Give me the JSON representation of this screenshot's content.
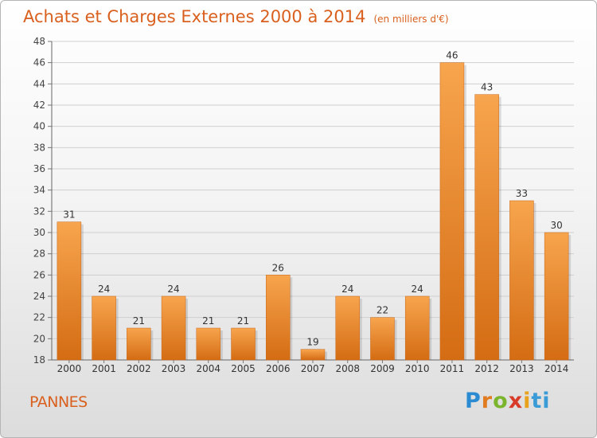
{
  "header": {
    "title": "Achats et Charges Externes 2000 à 2014",
    "unit": "(en milliers d'€)"
  },
  "footer": {
    "commune": "PANNES",
    "logo_letters": [
      "P",
      "r",
      "o",
      "x",
      "i",
      "ti"
    ]
  },
  "colors": {
    "bar_light": "#f7a54e",
    "bar_dark": "#d46c13",
    "title": "#d9601e"
  },
  "chart_data": {
    "type": "bar",
    "title": "Achats et Charges Externes 2000 à 2014",
    "xlabel": "",
    "ylabel": "",
    "categories": [
      "2000",
      "2001",
      "2002",
      "2003",
      "2004",
      "2005",
      "2006",
      "2007",
      "2008",
      "2009",
      "2010",
      "2011",
      "2012",
      "2013",
      "2014"
    ],
    "values": [
      31,
      24,
      21,
      24,
      21,
      21,
      26,
      19,
      24,
      22,
      24,
      46,
      43,
      33,
      30
    ],
    "ylim": [
      18,
      48
    ],
    "yticks": [
      18,
      20,
      22,
      24,
      26,
      28,
      30,
      32,
      34,
      36,
      38,
      40,
      42,
      44,
      46,
      48
    ],
    "grid": true,
    "legend": "none"
  }
}
